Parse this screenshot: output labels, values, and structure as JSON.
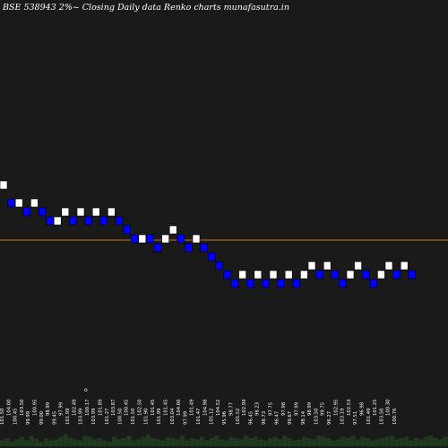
{
  "chart_data": {
    "type": "renko",
    "title": "BSE 538943 2%~  Closing Daily data  Renko  charts munafasutra.in",
    "brick_size": 2,
    "reference_line": 96.9,
    "ylim": [
      75.0,
      106.0
    ],
    "colors": {
      "background": "#1a1a1a",
      "up_brick": "#ffffff",
      "down_brick": "#0000ff",
      "reference_line": "#c8781e",
      "volume": "#1f3a1f",
      "text": "#ffffff"
    },
    "bricks": [
      {
        "dir": "up",
        "low": 102.5
      },
      {
        "dir": "down",
        "low": 100.5
      },
      {
        "dir": "up",
        "low": 100.5
      },
      {
        "dir": "down",
        "low": 99.5
      },
      {
        "dir": "up",
        "low": 100.5
      },
      {
        "dir": "down",
        "low": 99.5
      },
      {
        "dir": "down",
        "low": 98.5
      },
      {
        "dir": "up",
        "low": 98.5
      },
      {
        "dir": "up",
        "low": 99.5
      },
      {
        "dir": "down",
        "low": 98.5
      },
      {
        "dir": "up",
        "low": 99.5
      },
      {
        "dir": "down",
        "low": 98.5
      },
      {
        "dir": "up",
        "low": 99.5
      },
      {
        "dir": "down",
        "low": 98.5
      },
      {
        "dir": "up",
        "low": 99.5
      },
      {
        "dir": "down",
        "low": 98.5
      },
      {
        "dir": "down",
        "low": 97.5
      },
      {
        "dir": "down",
        "low": 96.5
      },
      {
        "dir": "up",
        "low": 96.5
      },
      {
        "dir": "down",
        "low": 96.5
      },
      {
        "dir": "down",
        "low": 95.5
      },
      {
        "dir": "up",
        "low": 96.5
      },
      {
        "dir": "up",
        "low": 97.5
      },
      {
        "dir": "down",
        "low": 96.5
      },
      {
        "dir": "down",
        "low": 95.5
      },
      {
        "dir": "up",
        "low": 96.5
      },
      {
        "dir": "down",
        "low": 95.5
      },
      {
        "dir": "down",
        "low": 94.5
      },
      {
        "dir": "down",
        "low": 93.5
      },
      {
        "dir": "down",
        "low": 92.5
      },
      {
        "dir": "down",
        "low": 91.5
      },
      {
        "dir": "up",
        "low": 92.5
      },
      {
        "dir": "down",
        "low": 91.5
      },
      {
        "dir": "up",
        "low": 92.5
      },
      {
        "dir": "down",
        "low": 91.5
      },
      {
        "dir": "up",
        "low": 92.5
      },
      {
        "dir": "down",
        "low": 91.5
      },
      {
        "dir": "up",
        "low": 92.5
      },
      {
        "dir": "down",
        "low": 91.5
      },
      {
        "dir": "up",
        "low": 92.5
      },
      {
        "dir": "up",
        "low": 93.5
      },
      {
        "dir": "down",
        "low": 92.5
      },
      {
        "dir": "up",
        "low": 93.5
      },
      {
        "dir": "down",
        "low": 92.5
      },
      {
        "dir": "down",
        "low": 91.5
      },
      {
        "dir": "up",
        "low": 92.5
      },
      {
        "dir": "up",
        "low": 93.5
      },
      {
        "dir": "down",
        "low": 92.5
      },
      {
        "dir": "down",
        "low": 91.5
      },
      {
        "dir": "up",
        "low": 92.5
      },
      {
        "dir": "up",
        "low": 93.5
      },
      {
        "dir": "down",
        "low": 92.5
      },
      {
        "dir": "up",
        "low": 93.5
      },
      {
        "dir": "down",
        "low": 92.5
      }
    ],
    "volume": [
      5,
      7,
      4,
      6,
      8,
      5,
      9,
      6,
      4,
      7,
      5,
      6,
      8,
      10,
      7,
      6,
      5,
      9,
      8,
      6,
      7,
      5,
      4,
      8,
      6,
      7,
      9,
      5,
      6,
      8,
      10,
      7,
      6,
      5,
      8,
      7,
      6,
      9,
      5,
      7,
      6,
      8,
      5,
      7,
      9,
      6,
      5,
      8,
      7,
      6,
      9,
      7,
      8,
      6,
      5,
      7,
      8,
      6,
      9,
      7,
      5,
      6,
      8,
      7,
      6,
      9,
      8,
      7,
      5,
      6,
      8,
      7,
      9,
      6,
      8,
      7,
      5,
      6,
      7,
      8,
      9,
      6,
      7,
      8,
      5,
      7,
      6,
      8,
      9,
      7,
      6,
      8
    ],
    "x_labels": [
      "101.50",
      "104.00",
      "100.45",
      "103.50",
      "99.99",
      "100.95",
      "99.00",
      "98.99",
      "99.45",
      "97.99",
      "101.99",
      "102.49",
      "103.99",
      "100.17",
      "103.99",
      "101.89",
      "101.27",
      "103.87",
      "100.50",
      "100.45",
      "101.50",
      "102.50",
      "101.90",
      "101.45",
      "101.99",
      "101.45",
      "103.04",
      "104.00",
      "97.99",
      "101.49",
      "101.47",
      "104.98",
      "105.12",
      "104.52",
      "95.96",
      "98.77",
      "105.52",
      "102.99",
      "96.45",
      "98.23",
      "98.73",
      "97.75",
      "96.47",
      "97.98",
      "99.67",
      "97.99",
      "98.14",
      "98.99",
      "103.50",
      "99.75",
      "96.27",
      "102.95",
      "103.19",
      "102.53",
      "97.51",
      "96.98",
      "101.49",
      "101.25",
      "103.50",
      "100.30",
      "100.76"
    ],
    "marker_label": "o"
  }
}
